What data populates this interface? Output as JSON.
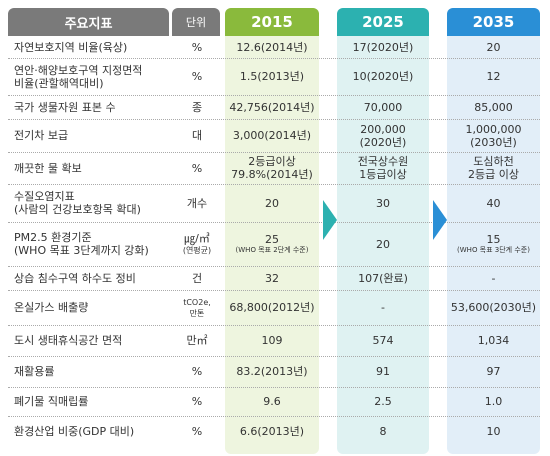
{
  "header": {
    "indicator": "주요지표",
    "unit": "단위",
    "y2015": "2015",
    "y2025": "2025",
    "y2035": "2035"
  },
  "colors": {
    "2015": "#8aba3c",
    "2025": "#2cb1b0",
    "2035": "#2a8fd6",
    "header": "#7a7a7a"
  },
  "rows": [
    {
      "indicator": "자연보호지역 비율(육상)",
      "unit": "%",
      "v2015": "12.6(2014년)",
      "v2015_note": "",
      "v2025": "17(2020년)",
      "v2035": "20",
      "v2035_note": ""
    },
    {
      "indicator": "연안·해양보호구역 지정면적\n비율(관할해역대비)",
      "unit": "%",
      "v2015": "1.5(2013년)",
      "v2015_note": "",
      "v2025": "10(2020년)",
      "v2035": "12",
      "v2035_note": ""
    },
    {
      "indicator": "국가 생물자원 표본 수",
      "unit": "종",
      "v2015": "42,756(2014년)",
      "v2015_note": "",
      "v2025": "70,000",
      "v2035": "85,000",
      "v2035_note": ""
    },
    {
      "indicator": "전기차 보급",
      "unit": "대",
      "v2015": "3,000(2014년)",
      "v2015_note": "",
      "v2025": "200,000\n(2020년)",
      "v2035": "1,000,000\n(2030년)",
      "v2035_note": ""
    },
    {
      "indicator": "깨끗한 물 확보",
      "unit": "%",
      "v2015": "2등급이상\n79.8%(2014년)",
      "v2015_note": "",
      "v2025": "전국상수원\n1등급이상",
      "v2035": "도심하천\n2등급 이상",
      "v2035_note": ""
    },
    {
      "indicator": "수질오염지표\n(사람의 건강보호항목 확대)",
      "unit": "개수",
      "v2015": "20",
      "v2015_note": "",
      "v2025": "30",
      "v2035": "40",
      "v2035_note": ""
    },
    {
      "indicator": "PM2.5 환경기준\n(WHO 목표 3단계까지 강화)",
      "unit": "㎍/㎥",
      "unit_note": "(연평균)",
      "v2015": "25",
      "v2015_note": "(WHO 목표 2단계 수준)",
      "v2025": "20",
      "v2035": "15",
      "v2035_note": "(WHO 목표 3단계 수준)"
    },
    {
      "indicator": "상습 침수구역 하수도 정비",
      "unit": "건",
      "v2015": "32",
      "v2015_note": "",
      "v2025": "107(완료)",
      "v2035": "-",
      "v2035_note": ""
    },
    {
      "indicator": "온실가스 배출량",
      "unit": "tCO2e,\n만톤",
      "v2015": "68,800(2012년)",
      "v2015_note": "",
      "v2025": "-",
      "v2035": "53,600(2030년)",
      "v2035_note": ""
    },
    {
      "indicator": "도시 생태휴식공간 면적",
      "unit": "만㎡",
      "v2015": "109",
      "v2015_note": "",
      "v2025": "574",
      "v2035": "1,034",
      "v2035_note": ""
    },
    {
      "indicator": "재활용률",
      "unit": "%",
      "v2015": "83.2(2013년)",
      "v2015_note": "",
      "v2025": "91",
      "v2035": "97",
      "v2035_note": ""
    },
    {
      "indicator": "폐기물 직매립률",
      "unit": "%",
      "v2015": "9.6",
      "v2015_note": "",
      "v2025": "2.5",
      "v2035": "1.0",
      "v2035_note": ""
    },
    {
      "indicator": "환경산업 비중(GDP 대비)",
      "unit": "%",
      "v2015": "6.6(2013년)",
      "v2015_note": "",
      "v2025": "8",
      "v2035": "10",
      "v2035_note": ""
    }
  ]
}
